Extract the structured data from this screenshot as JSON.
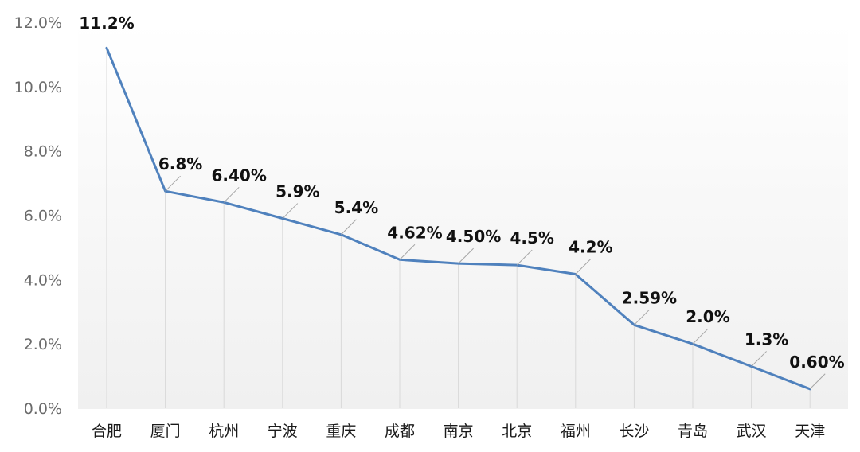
{
  "chart_data": {
    "type": "line",
    "title": "",
    "xlabel": "",
    "ylabel": "",
    "categories": [
      "合肥",
      "厦门",
      "杭州",
      "宁波",
      "重庆",
      "成都",
      "南京",
      "北京",
      "福州",
      "长沙",
      "青岛",
      "武汉",
      "天津"
    ],
    "series": [
      {
        "values": [
          11.2,
          6.75,
          6.4,
          5.9,
          5.4,
          4.62,
          4.5,
          4.45,
          4.17,
          2.59,
          2.0,
          1.3,
          0.6
        ],
        "data_labels": [
          "11.2%",
          "6.8%",
          "6.40%",
          "5.9%",
          "5.4%",
          "4.62%",
          "4.50%",
          "4.5%",
          "4.2%",
          "2.59%",
          "2.0%",
          "1.3%",
          "0.60%"
        ]
      }
    ],
    "ylim": [
      0,
      12
    ],
    "yticks": [
      "0.0%",
      "2.0%",
      "4.0%",
      "6.0%",
      "8.0%",
      "10.0%",
      "12.0%"
    ],
    "grid": "vertical drop lines",
    "legend": "none",
    "colors": {
      "line": "#4f81bd",
      "dropline": "#d9d9d9",
      "leader": "#a6a6a6",
      "background_gradient": "#f2f2f2"
    }
  }
}
